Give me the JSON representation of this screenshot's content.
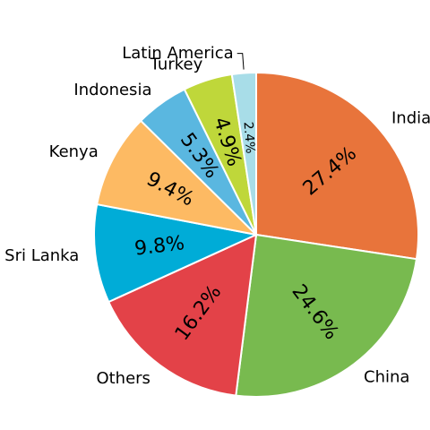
{
  "chart_data": {
    "type": "pie",
    "title": "",
    "start_angle_deg": 90,
    "direction": "clockwise",
    "label_style": "rotated",
    "slices": [
      {
        "label": "India",
        "value": 27.4,
        "value_label": "27.4%",
        "color": "#E8743B"
      },
      {
        "label": "China",
        "value": 24.6,
        "value_label": "24.6%",
        "color": "#78BA4F"
      },
      {
        "label": "Others",
        "value": 16.2,
        "value_label": "16.2%",
        "color": "#E34248"
      },
      {
        "label": "Sri Lanka",
        "value": 9.8,
        "value_label": "9.8%",
        "color": "#00ACD7"
      },
      {
        "label": "Kenya",
        "value": 9.4,
        "value_label": "9.4%",
        "color": "#FDBA63"
      },
      {
        "label": "Indonesia",
        "value": 5.3,
        "value_label": "5.3%",
        "color": "#5AB7E0"
      },
      {
        "label": "Turkey",
        "value": 4.9,
        "value_label": "4.9%",
        "color": "#BFD73A"
      },
      {
        "label": "Latin America",
        "value": 2.4,
        "value_label": "2.4%",
        "color": "#A8DDE8"
      }
    ]
  }
}
